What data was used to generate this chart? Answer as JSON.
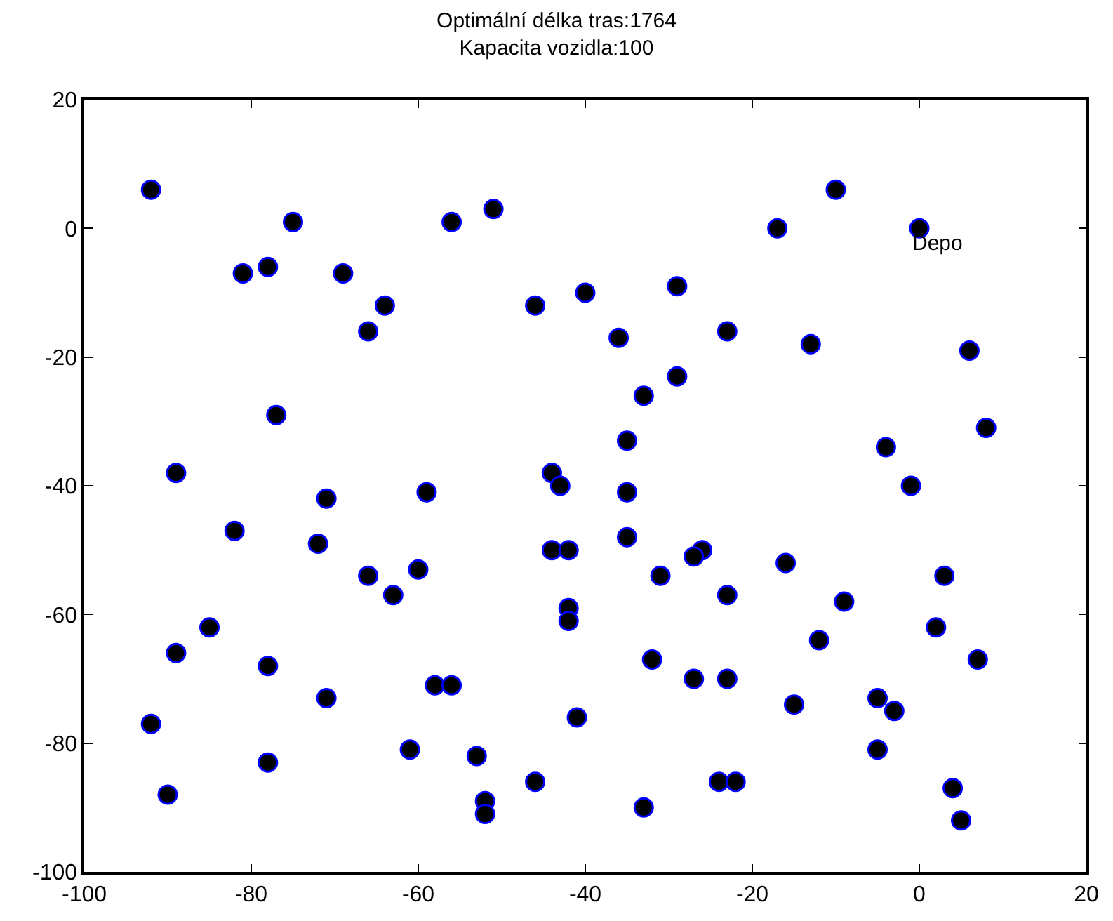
{
  "chart_data": {
    "type": "scatter",
    "title": "Optimální délka tras:1764\nKapacita vozidla:100",
    "x": [
      -92,
      -81,
      -78,
      -75,
      -69,
      -64,
      -66,
      -56,
      -51,
      -77,
      -89,
      -46,
      -40,
      -36,
      -29,
      -23,
      -17,
      -10,
      0,
      -13,
      6,
      -29,
      -33,
      8,
      -35,
      -4,
      -44,
      -43,
      -35,
      -1,
      -71,
      -59,
      -82,
      -72,
      -35,
      -44,
      -42,
      -26,
      -27,
      -16,
      -60,
      -66,
      -31,
      3,
      -63,
      -23,
      -9,
      -42,
      -42,
      -85,
      2,
      -12,
      -89,
      -32,
      7,
      -78,
      -27,
      -23,
      -58,
      -56,
      -71,
      -15,
      -5,
      -3,
      -41,
      -92,
      -61,
      -5,
      -53,
      -78,
      -46,
      -24,
      -22,
      4,
      -90,
      -52,
      -33,
      -52,
      5
    ],
    "series": [
      {
        "color": "#000000",
        "values": [
          6,
          -7,
          -6,
          1,
          -7,
          -12,
          -16,
          1,
          3,
          -29,
          -38,
          -12,
          -10,
          -17,
          -9,
          -16,
          0,
          6,
          0,
          -18,
          -19,
          -23,
          -26,
          -31,
          -33,
          -34,
          -38,
          -40,
          -41,
          -40,
          -42,
          -41,
          -47,
          -49,
          -48,
          -50,
          -50,
          -50,
          -51,
          -52,
          -53,
          -54,
          -54,
          -54,
          -57,
          -57,
          -58,
          -59,
          -61,
          -62,
          -62,
          -64,
          -66,
          -67,
          -67,
          -68,
          -70,
          -70,
          -71,
          -71,
          -73,
          -74,
          -73,
          -75,
          -76,
          -77,
          -81,
          -81,
          -82,
          -83,
          -86,
          -86,
          -86,
          -87,
          -88,
          -89,
          -90,
          -91,
          -92
        ]
      }
    ],
    "marker": "circle",
    "annotations": [
      {
        "text": "Depo",
        "x": 0,
        "y": 0
      }
    ],
    "xlim": [
      -100,
      20
    ],
    "xticks": [
      -100,
      -80,
      -60,
      -40,
      -20,
      0,
      20
    ],
    "ylim": [
      -100,
      20
    ],
    "yticks": [
      -100,
      -80,
      -60,
      -40,
      -20,
      0,
      20
    ]
  }
}
